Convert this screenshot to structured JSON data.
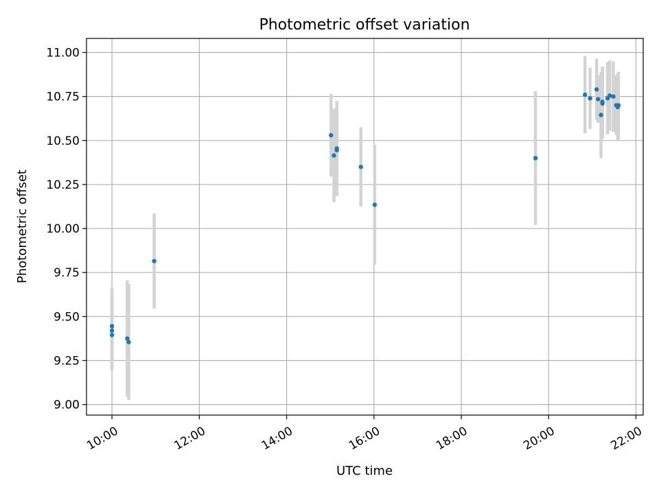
{
  "chart_data": {
    "type": "scatter",
    "title": "Photometric offset variation",
    "xlabel": "UTC time",
    "ylabel": "Photometric offset",
    "xlim": [
      "09:25",
      "22:10"
    ],
    "ylim": [
      8.94,
      11.08
    ],
    "x_tick_labels": [
      "10:00",
      "12:00",
      "14:00",
      "16:00",
      "18:00",
      "20:00",
      "22:00"
    ],
    "y_tick_labels": [
      "9.00",
      "9.25",
      "9.50",
      "9.75",
      "10.00",
      "10.25",
      "10.50",
      "10.75",
      "11.00"
    ],
    "grid": true,
    "colors": {
      "points": "#1f77b4",
      "error_bars": "#d3d3d3",
      "grid": "#b0b0b0"
    },
    "series": [
      {
        "points": [
          {
            "x": "10:00",
            "y": 9.445,
            "err": 0.22
          },
          {
            "x": "10:00",
            "y": 9.42,
            "err": 0.22
          },
          {
            "x": "10:00",
            "y": 9.395,
            "err": 0.2
          },
          {
            "x": "10:21",
            "y": 9.375,
            "err": 0.33
          },
          {
            "x": "10:23",
            "y": 9.355,
            "err": 0.33
          },
          {
            "x": "10:58",
            "y": 9.815,
            "err": 0.27
          },
          {
            "x": "15:01",
            "y": 10.53,
            "err": 0.235
          },
          {
            "x": "15:05",
            "y": 10.415,
            "err": 0.265
          },
          {
            "x": "15:09",
            "y": 10.445,
            "err": 0.24
          },
          {
            "x": "15:09",
            "y": 10.455,
            "err": 0.27
          },
          {
            "x": "15:42",
            "y": 10.35,
            "err": 0.225
          },
          {
            "x": "16:01",
            "y": 10.135,
            "err": 0.34
          },
          {
            "x": "19:42",
            "y": 10.4,
            "err": 0.38
          },
          {
            "x": "20:50",
            "y": 10.76,
            "err": 0.22
          },
          {
            "x": "20:57",
            "y": 10.74,
            "err": 0.175
          },
          {
            "x": "21:06",
            "y": 10.79,
            "err": 0.175
          },
          {
            "x": "21:08",
            "y": 10.735,
            "err": 0.135
          },
          {
            "x": "21:12",
            "y": 10.645,
            "err": 0.245
          },
          {
            "x": "21:14",
            "y": 10.72,
            "err": 0.2
          },
          {
            "x": "21:14",
            "y": 10.71,
            "err": 0.2
          },
          {
            "x": "21:21",
            "y": 10.74,
            "err": 0.205
          },
          {
            "x": "21:24",
            "y": 10.755,
            "err": 0.2
          },
          {
            "x": "21:29",
            "y": 10.75,
            "err": 0.2
          },
          {
            "x": "21:33",
            "y": 10.7,
            "err": 0.17
          },
          {
            "x": "21:35",
            "y": 10.69,
            "err": 0.19
          },
          {
            "x": "21:36",
            "y": 10.7,
            "err": 0.19
          }
        ]
      }
    ]
  }
}
